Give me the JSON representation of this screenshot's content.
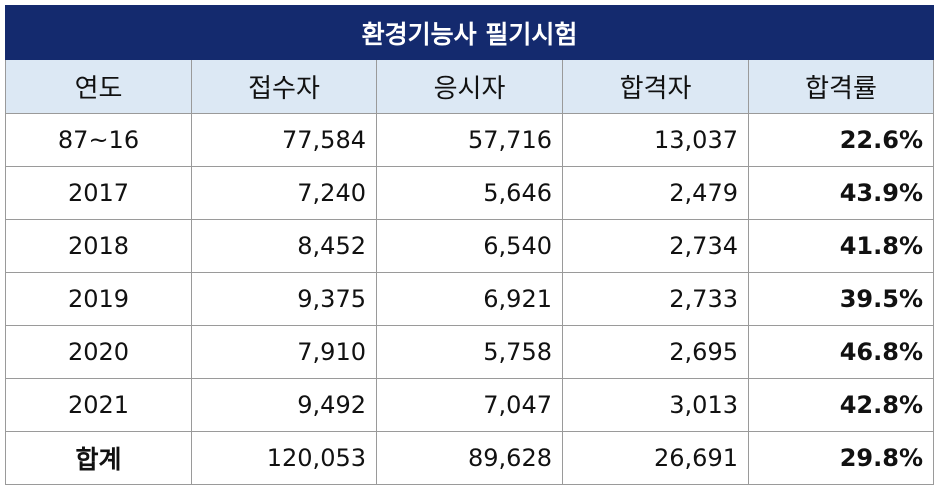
{
  "title": "환경기능사 필기시험",
  "headers": [
    "연도",
    "접수자",
    "응시자",
    "합격자",
    "합격률"
  ],
  "rows": [
    {
      "year": "87~16",
      "applicants": "77,584",
      "examinees": "57,716",
      "passed": "13,037",
      "rate": "22.6%"
    },
    {
      "year": "2017",
      "applicants": "7,240",
      "examinees": "5,646",
      "passed": "2,479",
      "rate": "43.9%"
    },
    {
      "year": "2018",
      "applicants": "8,452",
      "examinees": "6,540",
      "passed": "2,734",
      "rate": "41.8%"
    },
    {
      "year": "2019",
      "applicants": "9,375",
      "examinees": "6,921",
      "passed": "2,733",
      "rate": "39.5%"
    },
    {
      "year": "2020",
      "applicants": "7,910",
      "examinees": "5,758",
      "passed": "2,695",
      "rate": "46.8%"
    },
    {
      "year": "2021",
      "applicants": "9,492",
      "examinees": "7,047",
      "passed": "3,013",
      "rate": "42.8%"
    },
    {
      "year": "합계",
      "applicants": "120,053",
      "examinees": "89,628",
      "passed": "26,691",
      "rate": "29.8%"
    }
  ],
  "colors": {
    "title_bg": "#142a6e",
    "header_bg": "#dce8f4",
    "border": "#9a9a9a"
  }
}
